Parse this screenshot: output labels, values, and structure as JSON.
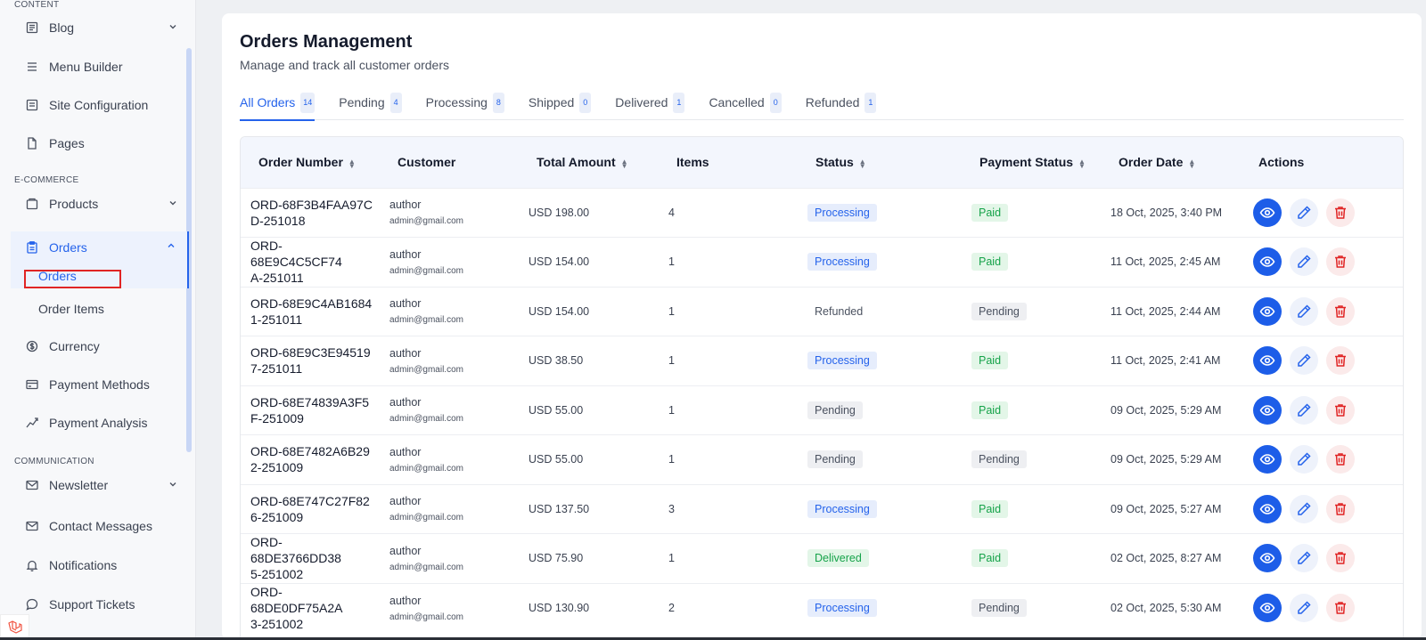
{
  "sidebar": {
    "sections": {
      "content": "CONTENT",
      "ecommerce": "E-COMMERCE",
      "communication": "COMMUNICATION"
    },
    "items": {
      "blog": "Blog",
      "menu_builder": "Menu Builder",
      "site_configuration": "Site Configuration",
      "pages": "Pages",
      "products": "Products",
      "orders": "Orders",
      "orders_sub": "Orders",
      "order_items": "Order Items",
      "currency": "Currency",
      "payment_methods": "Payment Methods",
      "payment_analysis": "Payment Analysis",
      "newsletter": "Newsletter",
      "contact_messages": "Contact Messages",
      "notifications": "Notifications",
      "support_tickets": "Support Tickets"
    }
  },
  "page": {
    "title": "Orders Management",
    "subtitle": "Manage and track all customer orders"
  },
  "tabs": [
    {
      "label": "All Orders",
      "count": "14"
    },
    {
      "label": "Pending",
      "count": "4"
    },
    {
      "label": "Processing",
      "count": "8"
    },
    {
      "label": "Shipped",
      "count": "0"
    },
    {
      "label": "Delivered",
      "count": "1"
    },
    {
      "label": "Cancelled",
      "count": "0"
    },
    {
      "label": "Refunded",
      "count": "1"
    }
  ],
  "table": {
    "headers": {
      "order_number": "Order Number",
      "customer": "Customer",
      "total_amount": "Total Amount",
      "items": "Items",
      "status": "Status",
      "payment_status": "Payment Status",
      "order_date": "Order Date",
      "actions": "Actions"
    },
    "rows": [
      {
        "order_l1": "ORD-68F3B4FAA97C",
        "order_l2": "D-251018",
        "name": "author",
        "email": "admin@gmail.com",
        "amount": "USD 198.00",
        "items": "4",
        "status": "Processing",
        "payment": "Paid",
        "date": "18 Oct, 2025, 3:40 PM"
      },
      {
        "order_l1": "ORD-68E9C4C5CF74",
        "order_l2": "A-251011",
        "name": "author",
        "email": "admin@gmail.com",
        "amount": "USD 154.00",
        "items": "1",
        "status": "Processing",
        "payment": "Paid",
        "date": "11 Oct, 2025, 2:45 AM"
      },
      {
        "order_l1": "ORD-68E9C4AB1684",
        "order_l2": "1-251011",
        "name": "author",
        "email": "admin@gmail.com",
        "amount": "USD 154.00",
        "items": "1",
        "status": "Refunded",
        "payment": "Pending",
        "date": "11 Oct, 2025, 2:44 AM"
      },
      {
        "order_l1": "ORD-68E9C3E94519",
        "order_l2": "7-251011",
        "name": "author",
        "email": "admin@gmail.com",
        "amount": "USD 38.50",
        "items": "1",
        "status": "Processing",
        "payment": "Paid",
        "date": "11 Oct, 2025, 2:41 AM"
      },
      {
        "order_l1": "ORD-68E74839A3F5",
        "order_l2": "F-251009",
        "name": "author",
        "email": "admin@gmail.com",
        "amount": "USD 55.00",
        "items": "1",
        "status": "Pending",
        "payment": "Paid",
        "date": "09 Oct, 2025, 5:29 AM"
      },
      {
        "order_l1": "ORD-68E7482A6B29",
        "order_l2": "2-251009",
        "name": "author",
        "email": "admin@gmail.com",
        "amount": "USD 55.00",
        "items": "1",
        "status": "Pending",
        "payment": "Pending",
        "date": "09 Oct, 2025, 5:29 AM"
      },
      {
        "order_l1": "ORD-68E747C27F82",
        "order_l2": "6-251009",
        "name": "author",
        "email": "admin@gmail.com",
        "amount": "USD 137.50",
        "items": "3",
        "status": "Processing",
        "payment": "Paid",
        "date": "09 Oct, 2025, 5:27 AM"
      },
      {
        "order_l1": "ORD-68DE3766DD38",
        "order_l2": "5-251002",
        "name": "author",
        "email": "admin@gmail.com",
        "amount": "USD 75.90",
        "items": "1",
        "status": "Delivered",
        "payment": "Paid",
        "date": "02 Oct, 2025, 8:27 AM"
      },
      {
        "order_l1": "ORD-68DE0DF75A2A",
        "order_l2": "3-251002",
        "name": "author",
        "email": "admin@gmail.com",
        "amount": "USD 130.90",
        "items": "2",
        "status": "Processing",
        "payment": "Pending",
        "date": "02 Oct, 2025, 5:30 AM"
      }
    ]
  },
  "colors": {
    "accent": "#2563eb",
    "success": "#16a34a",
    "danger": "#e02424",
    "sidebar_bg": "#f7f8fa",
    "page_bg": "#eef0f3"
  },
  "icons": {
    "blog": "newspaper-icon",
    "menu_builder": "menu-icon",
    "site_configuration": "document-list-icon",
    "pages": "file-icon",
    "products": "box-icon",
    "orders": "clipboard-icon",
    "currency": "currency-exchange-icon",
    "payment_methods": "credit-card-icon",
    "payment_analysis": "chart-line-icon",
    "newsletter": "mail-icon",
    "contact_messages": "envelope-icon",
    "notifications": "bell-icon",
    "support_tickets": "chat-bubble-icon",
    "view": "eye-icon",
    "edit": "pencil-icon",
    "delete": "trash-icon"
  }
}
